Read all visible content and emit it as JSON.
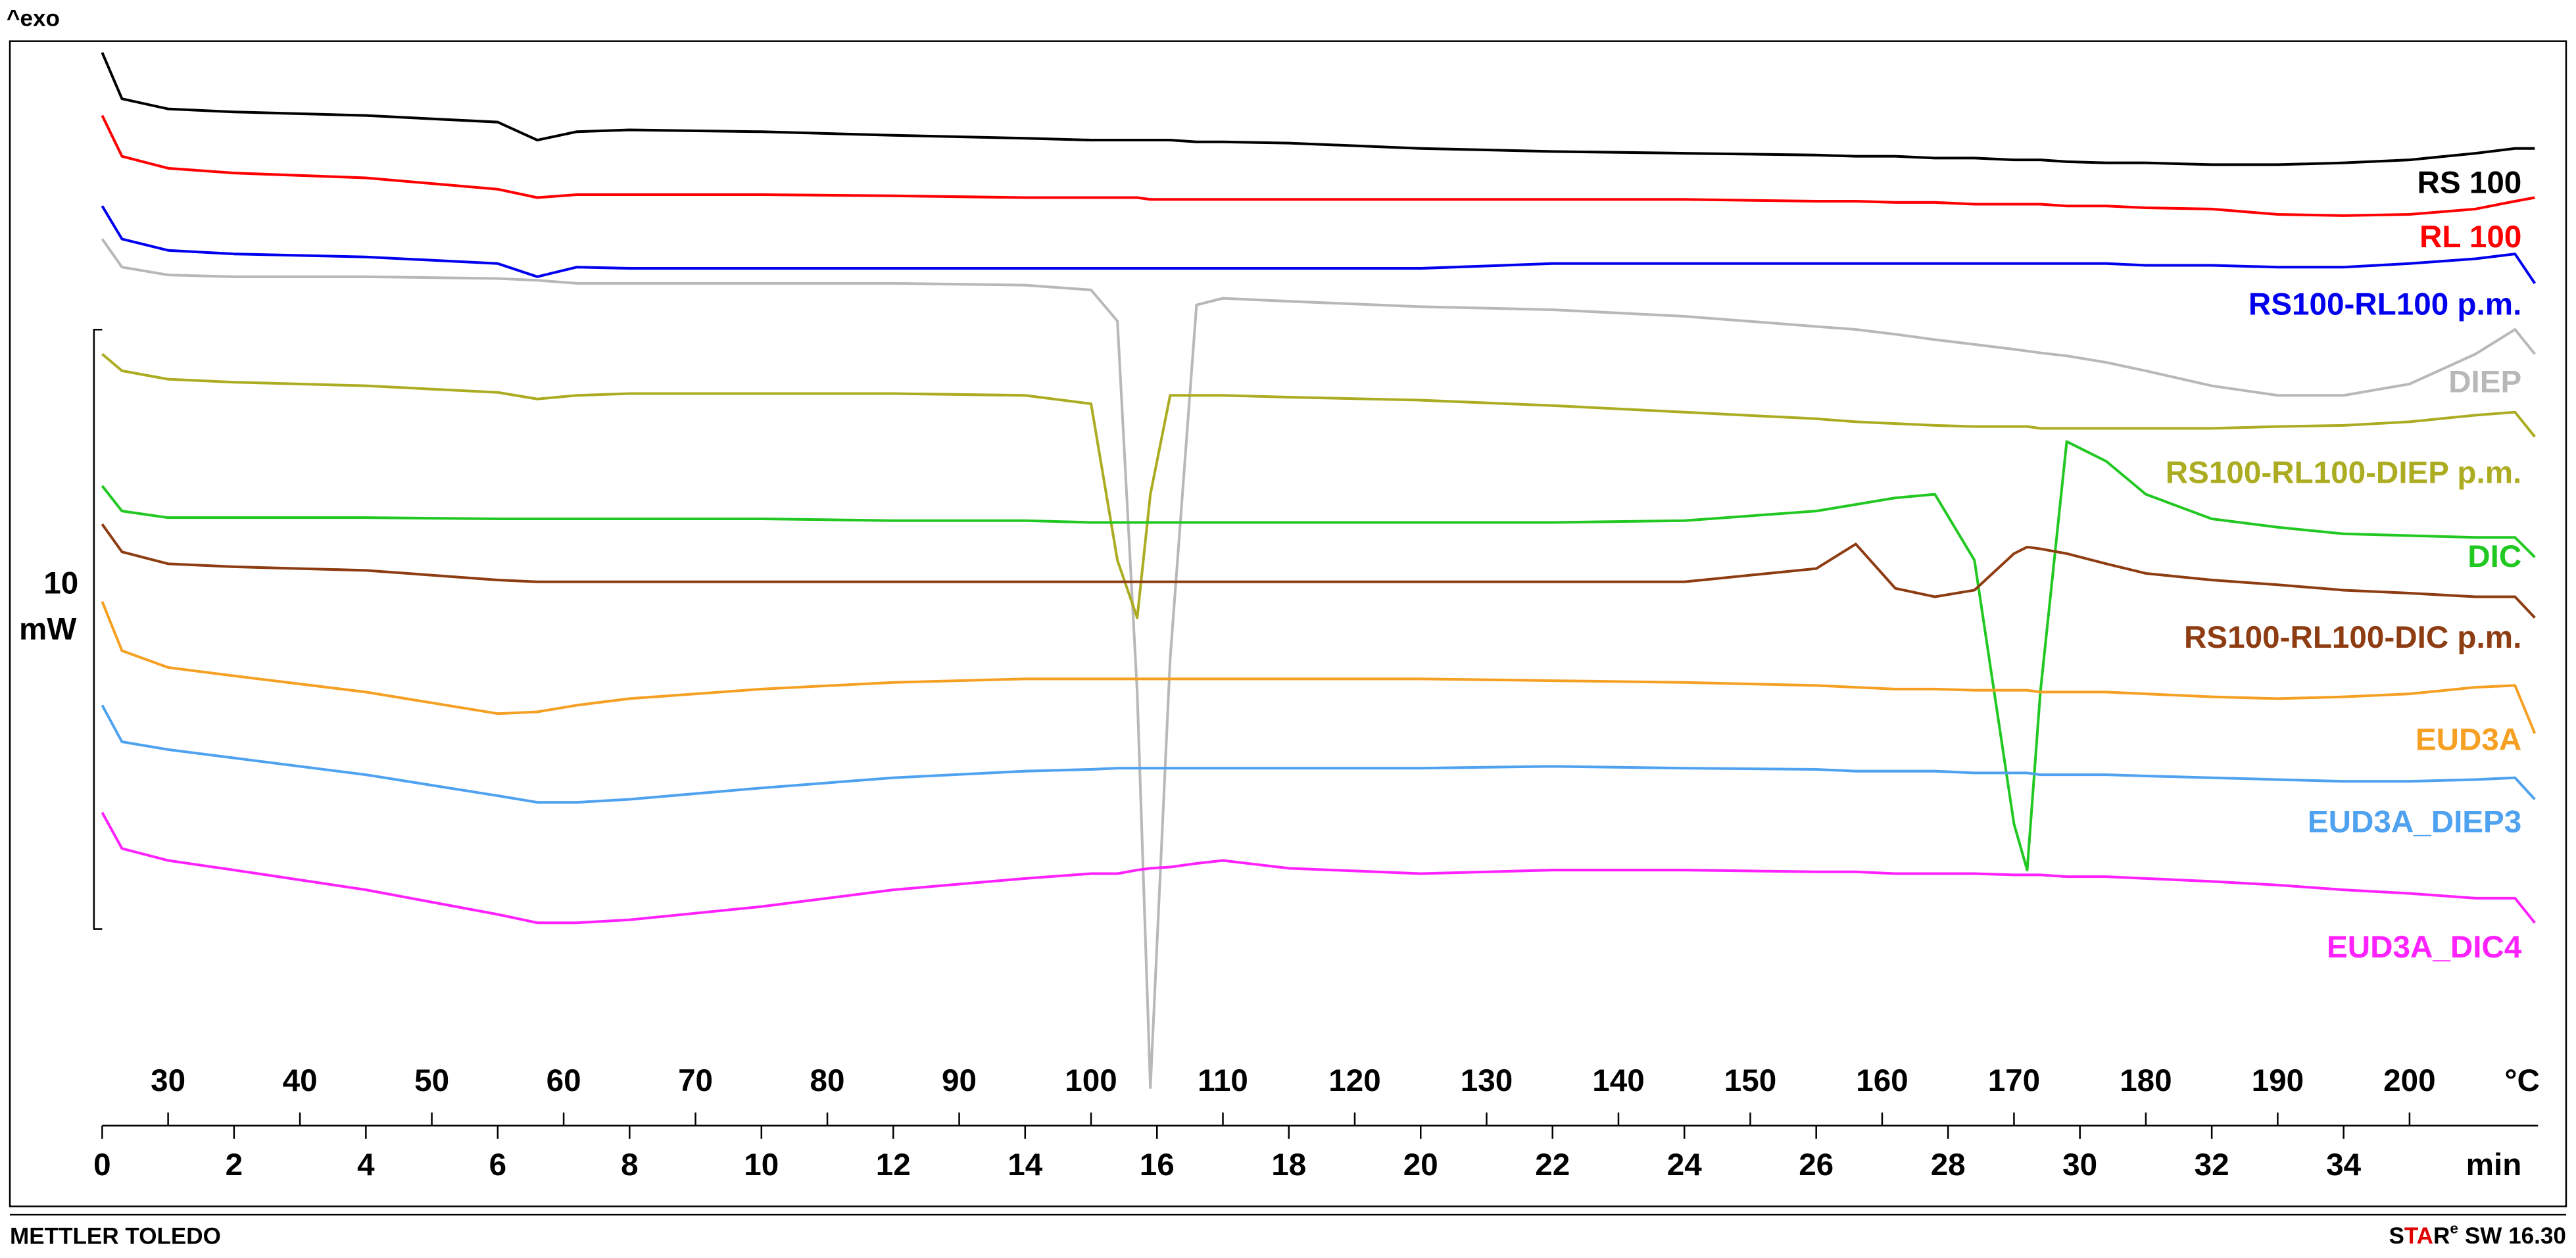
{
  "chart_data": {
    "type": "line",
    "top_left_label": "^exo",
    "x_label": "min",
    "x2_label": "°C",
    "xlim": [
      0,
      36.95
    ],
    "xticks": [
      0,
      2,
      4,
      6,
      8,
      10,
      12,
      14,
      16,
      18,
      20,
      22,
      24,
      26,
      28,
      30,
      32,
      34
    ],
    "x2lim": [
      25,
      209.75
    ],
    "x2ticks": [
      30,
      40,
      50,
      60,
      70,
      80,
      90,
      100,
      110,
      120,
      130,
      140,
      150,
      160,
      170,
      180,
      190,
      200
    ],
    "ylim": [
      0,
      17.6
    ],
    "scale_bar": 10,
    "scale_bar_unit": "mW",
    "x": [
      0,
      0.3,
      1,
      2,
      4,
      6,
      6.6,
      7.2,
      8,
      10,
      12,
      14,
      15,
      15.4,
      15.7,
      15.9,
      16.2,
      16.6,
      17,
      18,
      20,
      22,
      24,
      26,
      26.6,
      27.2,
      27.8,
      28.4,
      29,
      29.2,
      29.4,
      29.8,
      30.4,
      31,
      32,
      33,
      34,
      35,
      36,
      36.6,
      36.9
    ],
    "series": [
      {
        "name": "RS 100",
        "color": "#000000",
        "values": [
          17.41,
          16.64,
          16.47,
          16.42,
          16.36,
          16.25,
          15.95,
          16.09,
          16.12,
          16.09,
          16.03,
          15.98,
          15.95,
          15.95,
          15.95,
          15.95,
          15.95,
          15.92,
          15.92,
          15.9,
          15.81,
          15.76,
          15.73,
          15.7,
          15.68,
          15.68,
          15.65,
          15.65,
          15.62,
          15.62,
          15.62,
          15.59,
          15.57,
          15.57,
          15.54,
          15.54,
          15.57,
          15.62,
          15.73,
          15.81,
          15.81
        ]
      },
      {
        "name": "RL 100",
        "color": "#ff0000",
        "values": [
          16.36,
          15.68,
          15.48,
          15.4,
          15.32,
          15.13,
          14.99,
          15.04,
          15.04,
          15.04,
          15.02,
          14.99,
          14.99,
          14.99,
          14.99,
          14.96,
          14.96,
          14.96,
          14.96,
          14.96,
          14.96,
          14.96,
          14.96,
          14.93,
          14.93,
          14.91,
          14.91,
          14.88,
          14.88,
          14.88,
          14.88,
          14.85,
          14.85,
          14.82,
          14.8,
          14.71,
          14.69,
          14.71,
          14.8,
          14.93,
          14.99
        ]
      },
      {
        "name": "RS100-RL100 p.m.",
        "color": "#0000ee",
        "values": [
          14.85,
          14.3,
          14.11,
          14.05,
          14.0,
          13.89,
          13.67,
          13.83,
          13.81,
          13.81,
          13.81,
          13.81,
          13.81,
          13.81,
          13.81,
          13.81,
          13.81,
          13.81,
          13.81,
          13.81,
          13.81,
          13.89,
          13.89,
          13.89,
          13.89,
          13.89,
          13.89,
          13.89,
          13.89,
          13.89,
          13.89,
          13.89,
          13.89,
          13.86,
          13.86,
          13.83,
          13.83,
          13.89,
          13.97,
          14.05,
          13.56
        ]
      },
      {
        "name": "DIEP",
        "color": "#b8b8b8",
        "values": [
          14.3,
          13.83,
          13.7,
          13.67,
          13.67,
          13.64,
          13.61,
          13.56,
          13.56,
          13.56,
          13.56,
          13.53,
          13.45,
          12.93,
          6.74,
          0.14,
          7.29,
          13.2,
          13.31,
          13.26,
          13.17,
          13.12,
          13.01,
          12.84,
          12.79,
          12.71,
          12.62,
          12.54,
          12.46,
          12.43,
          12.4,
          12.35,
          12.24,
          12.1,
          11.85,
          11.69,
          11.69,
          11.88,
          12.38,
          12.79,
          12.38
        ]
      },
      {
        "name": "RS100-RL100-DIEP p.m.",
        "color": "#acac22",
        "values": [
          12.38,
          12.1,
          11.96,
          11.91,
          11.85,
          11.74,
          11.63,
          11.69,
          11.72,
          11.72,
          11.72,
          11.69,
          11.55,
          8.94,
          7.98,
          10.04,
          11.69,
          11.69,
          11.69,
          11.66,
          11.61,
          11.52,
          11.41,
          11.3,
          11.25,
          11.22,
          11.19,
          11.17,
          11.17,
          11.17,
          11.14,
          11.14,
          11.14,
          11.14,
          11.14,
          11.17,
          11.19,
          11.25,
          11.36,
          11.41,
          11.0
        ]
      },
      {
        "name": "DIC",
        "color": "#22c822",
        "values": [
          10.18,
          9.76,
          9.65,
          9.65,
          9.65,
          9.63,
          9.63,
          9.63,
          9.63,
          9.63,
          9.6,
          9.6,
          9.57,
          9.57,
          9.57,
          9.57,
          9.57,
          9.57,
          9.57,
          9.57,
          9.57,
          9.57,
          9.6,
          9.76,
          9.87,
          9.98,
          10.04,
          8.94,
          4.54,
          3.77,
          6.74,
          10.92,
          10.59,
          10.04,
          9.63,
          9.49,
          9.38,
          9.35,
          9.32,
          9.32,
          8.99
        ]
      },
      {
        "name": "RS100-RL100-DIC p.m.",
        "color": "#8e3c12",
        "values": [
          9.54,
          9.08,
          8.88,
          8.83,
          8.77,
          8.61,
          8.58,
          8.58,
          8.58,
          8.58,
          8.58,
          8.58,
          8.58,
          8.58,
          8.58,
          8.58,
          8.58,
          8.58,
          8.58,
          8.58,
          8.58,
          8.58,
          8.58,
          8.8,
          9.21,
          8.47,
          8.33,
          8.44,
          9.05,
          9.16,
          9.13,
          9.05,
          8.88,
          8.72,
          8.61,
          8.53,
          8.44,
          8.39,
          8.33,
          8.33,
          7.98
        ]
      },
      {
        "name": "EUD3A",
        "color": "#f5a023",
        "values": [
          8.25,
          7.43,
          7.15,
          7.01,
          6.74,
          6.38,
          6.41,
          6.52,
          6.63,
          6.79,
          6.9,
          6.96,
          6.96,
          6.96,
          6.96,
          6.96,
          6.96,
          6.96,
          6.96,
          6.96,
          6.96,
          6.93,
          6.9,
          6.85,
          6.82,
          6.79,
          6.79,
          6.77,
          6.77,
          6.77,
          6.74,
          6.74,
          6.74,
          6.71,
          6.66,
          6.63,
          6.66,
          6.71,
          6.82,
          6.85,
          6.05
        ]
      },
      {
        "name": "EUD3A_DIEP3",
        "color": "#4fa2ef",
        "values": [
          6.52,
          5.91,
          5.78,
          5.64,
          5.36,
          5.01,
          4.9,
          4.9,
          4.95,
          5.14,
          5.31,
          5.42,
          5.45,
          5.47,
          5.47,
          5.47,
          5.47,
          5.47,
          5.47,
          5.47,
          5.47,
          5.5,
          5.47,
          5.45,
          5.42,
          5.42,
          5.42,
          5.39,
          5.39,
          5.39,
          5.36,
          5.36,
          5.36,
          5.34,
          5.31,
          5.28,
          5.25,
          5.25,
          5.28,
          5.31,
          4.95
        ]
      },
      {
        "name": "EUD3A_DIC4",
        "color": "#ff22ff",
        "values": [
          4.73,
          4.13,
          3.93,
          3.77,
          3.44,
          3.03,
          2.89,
          2.89,
          2.94,
          3.16,
          3.44,
          3.63,
          3.71,
          3.71,
          3.77,
          3.8,
          3.82,
          3.88,
          3.93,
          3.8,
          3.71,
          3.77,
          3.77,
          3.74,
          3.74,
          3.71,
          3.71,
          3.71,
          3.69,
          3.69,
          3.69,
          3.66,
          3.66,
          3.63,
          3.58,
          3.52,
          3.44,
          3.38,
          3.3,
          3.3,
          2.89
        ]
      }
    ],
    "footer_left": "METTLER TOLEDO",
    "software": {
      "brand": [
        "S",
        "TA",
        "R"
      ],
      "superscript": "e",
      "version": "SW 16.30"
    }
  }
}
